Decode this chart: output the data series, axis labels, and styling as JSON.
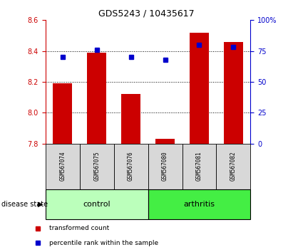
{
  "title": "GDS5243 / 10435617",
  "samples": [
    "GSM567074",
    "GSM567075",
    "GSM567076",
    "GSM567080",
    "GSM567081",
    "GSM567082"
  ],
  "red_values": [
    8.19,
    8.39,
    8.12,
    7.83,
    8.52,
    8.46
  ],
  "blue_values": [
    70,
    76,
    70,
    68,
    80,
    78
  ],
  "ymin": 7.8,
  "ymax": 8.6,
  "y2min": 0,
  "y2max": 100,
  "yticks": [
    7.8,
    8.0,
    8.2,
    8.4,
    8.6
  ],
  "y2ticks": [
    0,
    25,
    50,
    75,
    100
  ],
  "y2ticklabels": [
    "0",
    "25",
    "50",
    "75",
    "100%"
  ],
  "groups": [
    {
      "label": "control",
      "indices": [
        0,
        1,
        2
      ],
      "color": "#bbffbb"
    },
    {
      "label": "arthritis",
      "indices": [
        3,
        4,
        5
      ],
      "color": "#44ee44"
    }
  ],
  "bar_color": "#cc0000",
  "dot_color": "#0000cc",
  "bar_width": 0.55,
  "baseline": 7.8,
  "group_label": "disease state",
  "legend_items": [
    {
      "label": "transformed count",
      "color": "#cc0000"
    },
    {
      "label": "percentile rank within the sample",
      "color": "#0000cc"
    }
  ],
  "tick_color_left": "#cc0000",
  "tick_color_right": "#0000cc",
  "sample_bg_color": "#d8d8d8",
  "grid_yticks": [
    8.0,
    8.2,
    8.4
  ]
}
